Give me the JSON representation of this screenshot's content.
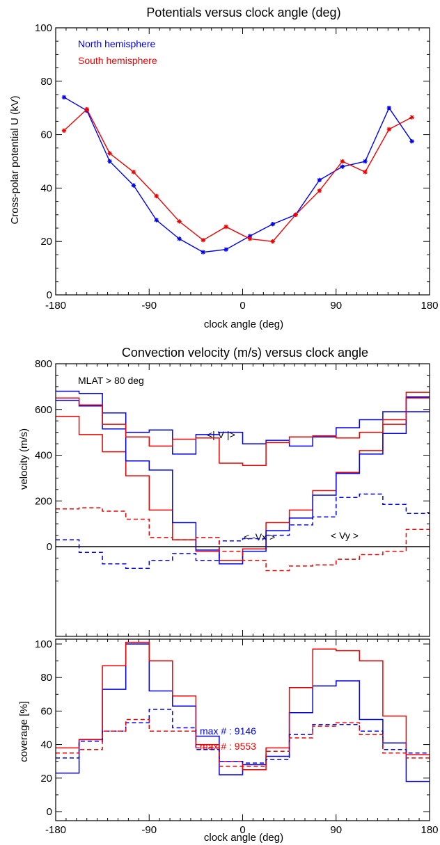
{
  "chart_data": [
    {
      "type": "line",
      "title": "Potentials versus clock angle  (deg)",
      "xlabel": "clock angle  (deg)",
      "ylabel": "Cross-polar potential U (kV)",
      "xlim": [
        -180,
        180
      ],
      "ylim": [
        0,
        100
      ],
      "xticks": [
        "-180",
        "-90",
        "0",
        "90",
        "180"
      ],
      "yticks": [
        "0",
        "20",
        "40",
        "60",
        "80",
        "100"
      ],
      "x": [
        -172,
        -150,
        -128,
        -105,
        -83,
        -61,
        -38,
        -16,
        7,
        29,
        51,
        74,
        96,
        118,
        141,
        163
      ],
      "series": [
        {
          "name": "North hemisphere",
          "color": "#0000ee",
          "values": [
            74,
            69,
            50,
            41,
            28,
            21,
            16,
            17,
            22,
            26.5,
            30,
            43,
            48,
            50,
            70,
            57.5
          ]
        },
        {
          "name": "South hemisphere",
          "color": "#ee0000",
          "values": [
            61.5,
            69.5,
            53,
            46,
            37,
            27.5,
            20.5,
            25.5,
            21,
            20,
            30,
            39,
            50,
            46,
            62,
            66.5
          ]
        }
      ],
      "legend": "top-left",
      "markers": "asterisk"
    },
    {
      "type": "line",
      "title": "Convection velocity (m/s) versus clock angle",
      "ylabel": "velocity (m/s)",
      "xlim": [
        -180,
        180
      ],
      "ylim": [
        -180,
        800
      ],
      "yticks": [
        "0",
        "200",
        "400",
        "600",
        "800"
      ],
      "annotations": [
        "MLAT > 80 deg",
        "<| V |>",
        "< -Vx >",
        "< Vy >"
      ],
      "bin_edges": [
        -180,
        -157.5,
        -135,
        -112.5,
        -90,
        -67.5,
        -45,
        -22.5,
        0,
        22.5,
        45,
        67.5,
        90,
        112.5,
        135,
        157.5,
        180
      ],
      "series": [
        {
          "id": "north_abs_v",
          "color": "#0000ee",
          "style": "solid",
          "values": [
            680,
            670,
            585,
            500,
            510,
            405,
            490,
            500,
            450,
            465,
            440,
            480,
            520,
            555,
            590,
            590
          ]
        },
        {
          "id": "south_abs_v",
          "color": "#ee0000",
          "style": "solid",
          "values": [
            570,
            490,
            415,
            310,
            160,
            30,
            -20,
            -60,
            -10,
            105,
            160,
            245,
            325,
            420,
            535,
            650
          ]
        },
        {
          "id": "north_vx",
          "color": "#0000ee",
          "style": "solid",
          "values": [
            640,
            615,
            515,
            375,
            335,
            105,
            -15,
            -75,
            -20,
            70,
            125,
            225,
            320,
            405,
            495,
            655
          ]
        },
        {
          "id": "south_vx",
          "color": "#ee0000",
          "style": "solid",
          "values": [
            650,
            620,
            535,
            480,
            440,
            470,
            475,
            365,
            355,
            455,
            480,
            485,
            475,
            500,
            555,
            675
          ]
        },
        {
          "id": "north_vy",
          "color": "#0000ee",
          "style": "dashed",
          "values": [
            30,
            -25,
            -75,
            -95,
            -60,
            -30,
            -60,
            25,
            35,
            50,
            95,
            130,
            215,
            230,
            185,
            145
          ]
        },
        {
          "id": "south_vy",
          "color": "#ee0000",
          "style": "dashed",
          "values": [
            165,
            170,
            155,
            120,
            40,
            30,
            40,
            -20,
            -60,
            -105,
            -85,
            -80,
            -55,
            -35,
            -20,
            75
          ]
        }
      ]
    },
    {
      "type": "line",
      "xlabel": "clock angle (deg)",
      "ylabel": "coverage [%]",
      "xlim": [
        -180,
        180
      ],
      "ylim": [
        0,
        100
      ],
      "xticks": [
        "-180",
        "-90",
        "0",
        "90",
        "180"
      ],
      "yticks": [
        "0",
        "20",
        "40",
        "60",
        "80",
        "100"
      ],
      "annotations": [
        {
          "text": "max # : 9146",
          "color": "#0000ee"
        },
        {
          "text": "max # : 9553",
          "color": "#ee0000"
        }
      ],
      "bin_edges": [
        -180,
        -157.5,
        -135,
        -112.5,
        -90,
        -67.5,
        -45,
        -22.5,
        0,
        22.5,
        45,
        67.5,
        90,
        112.5,
        135,
        157.5,
        180
      ],
      "series": [
        {
          "id": "north_coverage",
          "color": "#0000ee",
          "style": "solid",
          "values": [
            23,
            43,
            73,
            100,
            72,
            63,
            45,
            22,
            28,
            33,
            59,
            75,
            78,
            55,
            41,
            18
          ]
        },
        {
          "id": "south_coverage",
          "color": "#ee0000",
          "style": "solid",
          "values": [
            38,
            43,
            87,
            101,
            90,
            69,
            40,
            30,
            25,
            38,
            74,
            97,
            96,
            90,
            57,
            34
          ]
        },
        {
          "id": "north_coverage_dashed",
          "color": "#0000ee",
          "style": "dashed",
          "values": [
            32,
            42,
            48,
            53,
            61,
            50,
            37,
            30,
            29,
            31,
            46,
            52,
            52,
            48,
            37,
            35
          ]
        },
        {
          "id": "south_coverage_dashed",
          "color": "#ee0000",
          "style": "dashed",
          "values": [
            35,
            37,
            48,
            55,
            48,
            48,
            38,
            27,
            27,
            36,
            44,
            51,
            53,
            46,
            35,
            32
          ]
        }
      ]
    }
  ]
}
